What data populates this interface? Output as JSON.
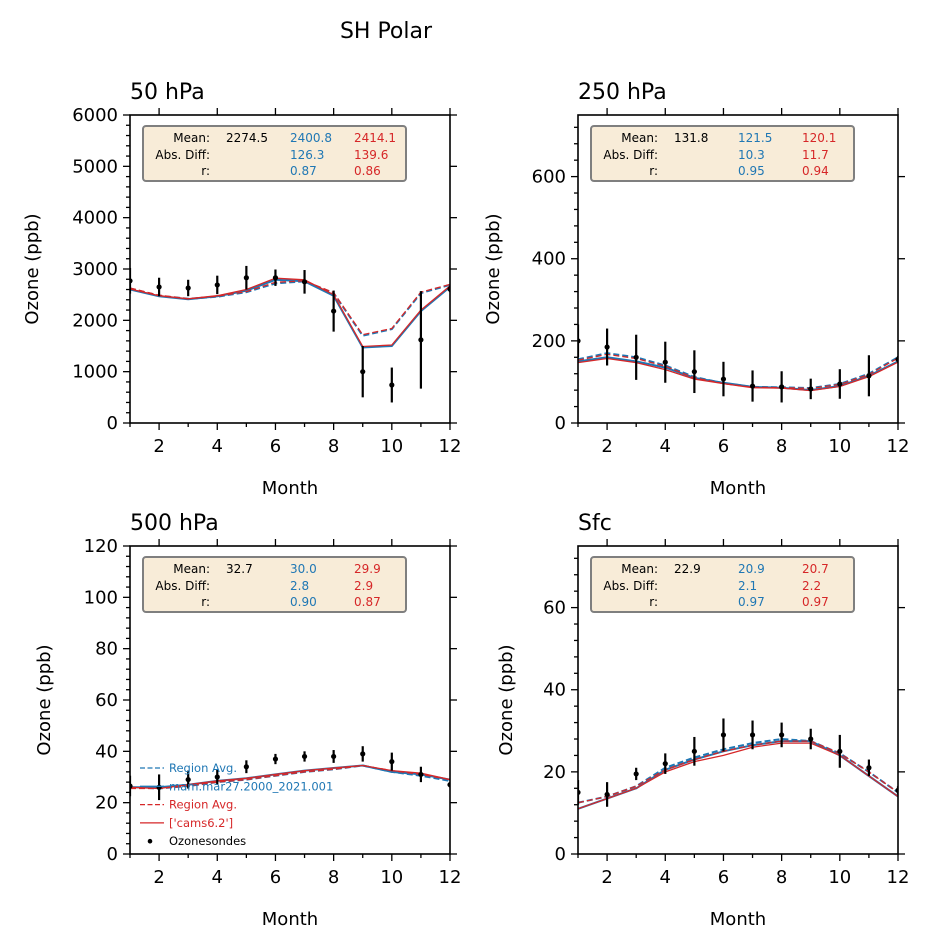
{
  "figure": {
    "title": "SH Polar"
  },
  "colors": {
    "model_blue": "#1f77b4",
    "model_red": "#d62728",
    "obs": "#000000",
    "statbox_bg": "#f8ecd8",
    "statbox_border": "#7f7f7f"
  },
  "chart_data": [
    {
      "type": "line",
      "title": "50 hPa",
      "xlabel": "Month",
      "ylabel": "Ozone (ppb)",
      "xlim": [
        1,
        12
      ],
      "ylim": [
        0,
        6000
      ],
      "xticks": [
        2,
        4,
        6,
        8,
        10,
        12
      ],
      "yticks": [
        0,
        1000,
        2000,
        3000,
        4000,
        5000,
        6000
      ],
      "x": [
        1,
        2,
        3,
        4,
        5,
        6,
        7,
        8,
        9,
        10,
        11,
        12
      ],
      "series": [
        {
          "name": "Region Avg.",
          "color": "blue",
          "style": "dashed",
          "values": [
            2620,
            2480,
            2420,
            2460,
            2550,
            2720,
            2760,
            2530,
            1700,
            1830,
            2530,
            2690
          ]
        },
        {
          "name": "mam.mar27.2000_2021.001",
          "color": "blue",
          "style": "solid",
          "values": [
            2600,
            2470,
            2410,
            2470,
            2580,
            2790,
            2760,
            2480,
            1470,
            1500,
            2180,
            2650
          ]
        },
        {
          "name": "Region Avg.",
          "color": "red",
          "style": "dashed",
          "values": [
            2630,
            2490,
            2420,
            2470,
            2560,
            2740,
            2770,
            2540,
            1720,
            1840,
            2550,
            2700
          ]
        },
        {
          "name": "['cams6.2']",
          "color": "red",
          "style": "solid",
          "values": [
            2610,
            2480,
            2420,
            2480,
            2600,
            2820,
            2790,
            2500,
            1490,
            1520,
            2200,
            2670
          ]
        }
      ],
      "obs": {
        "name": "Ozonesondes",
        "values": [
          2770,
          2650,
          2630,
          2690,
          2830,
          2830,
          2750,
          2180,
          1000,
          740,
          1620,
          2610
        ],
        "errors": [
          250,
          180,
          160,
          180,
          230,
          160,
          230,
          400,
          500,
          340,
          950,
          60
        ]
      },
      "stats": {
        "labels": [
          "Mean:",
          "Abs. Diff:",
          "r:"
        ],
        "obs_mean": "2274.5",
        "blue": [
          "2400.8",
          "126.3",
          "0.87"
        ],
        "red": [
          "2414.1",
          "139.6",
          "0.86"
        ]
      }
    },
    {
      "type": "line",
      "title": "250 hPa",
      "xlabel": "Month",
      "ylabel": "Ozone (ppb)",
      "xlim": [
        1,
        12
      ],
      "ylim": [
        0,
        750
      ],
      "xticks": [
        2,
        4,
        6,
        8,
        10,
        12
      ],
      "yticks": [
        0,
        200,
        400,
        600
      ],
      "x": [
        1,
        2,
        3,
        4,
        5,
        6,
        7,
        8,
        9,
        10,
        11,
        12
      ],
      "series": [
        {
          "name": "Region Avg.",
          "color": "blue",
          "style": "dashed",
          "values": [
            155,
            170,
            160,
            140,
            112,
            97,
            88,
            87,
            85,
            95,
            120,
            160
          ]
        },
        {
          "name": "mam.mar27.2000_2021.001",
          "color": "blue",
          "style": "solid",
          "values": [
            150,
            160,
            150,
            135,
            110,
            98,
            88,
            86,
            80,
            90,
            115,
            150
          ]
        },
        {
          "name": "Region Avg.",
          "color": "red",
          "style": "dashed",
          "values": [
            153,
            167,
            157,
            138,
            110,
            96,
            87,
            86,
            84,
            94,
            118,
            158
          ]
        },
        {
          "name": "['cams6.2']",
          "color": "red",
          "style": "solid",
          "values": [
            147,
            157,
            147,
            130,
            107,
            96,
            86,
            85,
            79,
            89,
            113,
            148
          ]
        }
      ],
      "obs": {
        "name": "Ozonesondes",
        "values": [
          200,
          185,
          160,
          148,
          125,
          107,
          90,
          88,
          83,
          95,
          115,
          155
        ],
        "errors": [
          40,
          45,
          55,
          50,
          52,
          42,
          38,
          38,
          25,
          36,
          50,
          8
        ]
      },
      "stats": {
        "labels": [
          "Mean:",
          "Abs. Diff:",
          "r:"
        ],
        "obs_mean": "131.8",
        "blue": [
          "121.5",
          "10.3",
          "0.95"
        ],
        "red": [
          "120.1",
          "11.7",
          "0.94"
        ]
      }
    },
    {
      "type": "line",
      "title": "500 hPa",
      "xlabel": "Month",
      "ylabel": "Ozone (ppb)",
      "xlim": [
        1,
        12
      ],
      "ylim": [
        0,
        120
      ],
      "xticks": [
        2,
        4,
        6,
        8,
        10,
        12
      ],
      "yticks": [
        0,
        20,
        40,
        60,
        80,
        100,
        120
      ],
      "x": [
        1,
        2,
        3,
        4,
        5,
        6,
        7,
        8,
        9,
        10,
        11,
        12
      ],
      "series": [
        {
          "name": "Region Avg.",
          "color": "blue",
          "style": "dashed",
          "values": [
            26,
            25.5,
            26.5,
            28,
            29,
            30.5,
            32,
            33,
            34.5,
            32,
            30.5,
            28.5
          ]
        },
        {
          "name": "mam.mar27.2000_2021.001",
          "color": "blue",
          "style": "solid",
          "values": [
            26,
            26,
            27,
            28.5,
            29.5,
            31,
            32.5,
            33.5,
            34.5,
            32,
            31,
            29
          ]
        },
        {
          "name": "Region Avg.",
          "color": "red",
          "style": "dashed",
          "values": [
            25.5,
            25.5,
            26.5,
            28,
            29,
            30.5,
            32,
            33,
            34.5,
            32.5,
            31,
            29
          ]
        },
        {
          "name": "['cams6.2']",
          "color": "red",
          "style": "solid",
          "values": [
            26,
            25.5,
            27,
            28.5,
            29.5,
            31,
            32.5,
            33.5,
            34.5,
            32.5,
            31.5,
            29
          ]
        }
      ],
      "obs": {
        "name": "Ozonesondes",
        "values": [
          26.5,
          26,
          29,
          30,
          34,
          37,
          38,
          38,
          39,
          36,
          31,
          27
        ],
        "errors": [
          4,
          5,
          3.5,
          3,
          2.5,
          2,
          2,
          2.5,
          3,
          3.5,
          3,
          1
        ]
      },
      "stats": {
        "labels": [
          "Mean:",
          "Abs. Diff:",
          "r:"
        ],
        "obs_mean": "32.7",
        "blue": [
          "30.0",
          "2.8",
          "0.90"
        ],
        "red": [
          "29.9",
          "2.9",
          "0.87"
        ]
      },
      "legend": {
        "placement": "lower-left",
        "entries": [
          {
            "label": "Region Avg.",
            "color": "blue",
            "style": "dashed"
          },
          {
            "label": "mam.mar27.2000_2021.001",
            "color": "blue",
            "style": "solid"
          },
          {
            "label": "Region Avg.",
            "color": "red",
            "style": "dashed"
          },
          {
            "label": "['cams6.2']",
            "color": "red",
            "style": "solid"
          },
          {
            "label": "Ozonesondes",
            "color": "black",
            "style": "dot"
          }
        ]
      }
    },
    {
      "type": "line",
      "title": "Sfc",
      "xlabel": "Month",
      "ylabel": "Ozone (ppb)",
      "xlim": [
        1,
        12
      ],
      "ylim": [
        0,
        75
      ],
      "xticks": [
        2,
        4,
        6,
        8,
        10,
        12
      ],
      "yticks": [
        0,
        20,
        40,
        60
      ],
      "x": [
        1,
        2,
        3,
        4,
        5,
        6,
        7,
        8,
        9,
        10,
        11,
        12
      ],
      "series": [
        {
          "name": "Region Avg.",
          "color": "blue",
          "style": "dashed",
          "values": [
            12.5,
            14,
            16.5,
            21,
            23.5,
            25.5,
            27,
            28,
            27.5,
            24.5,
            20,
            15
          ]
        },
        {
          "name": "mam.mar27.2000_2021.001",
          "color": "blue",
          "style": "solid",
          "values": [
            11,
            13.5,
            16,
            20.5,
            23,
            25,
            26.5,
            27.5,
            27.5,
            24,
            19,
            14
          ]
        },
        {
          "name": "Region Avg.",
          "color": "red",
          "style": "dashed",
          "values": [
            12.5,
            14,
            16.5,
            20.5,
            23,
            25,
            26.5,
            27.5,
            27.5,
            24.5,
            20,
            15
          ]
        },
        {
          "name": "['cams6.2']",
          "color": "red",
          "style": "solid",
          "values": [
            11,
            13.5,
            16,
            20,
            22.5,
            24,
            26,
            27,
            27,
            24,
            19,
            14
          ]
        }
      ],
      "obs": {
        "name": "Ozonesondes",
        "values": [
          15,
          14.5,
          19.5,
          22,
          25,
          29,
          29,
          29,
          28,
          25,
          21,
          15.5
        ],
        "errors": [
          3,
          3,
          1.5,
          2.5,
          3.5,
          4,
          3.5,
          3,
          2.5,
          4,
          2,
          1
        ]
      },
      "stats": {
        "labels": [
          "Mean:",
          "Abs. Diff:",
          "r:"
        ],
        "obs_mean": "22.9",
        "blue": [
          "20.9",
          "2.1",
          "0.97"
        ],
        "red": [
          "20.7",
          "2.2",
          "0.97"
        ]
      }
    }
  ]
}
